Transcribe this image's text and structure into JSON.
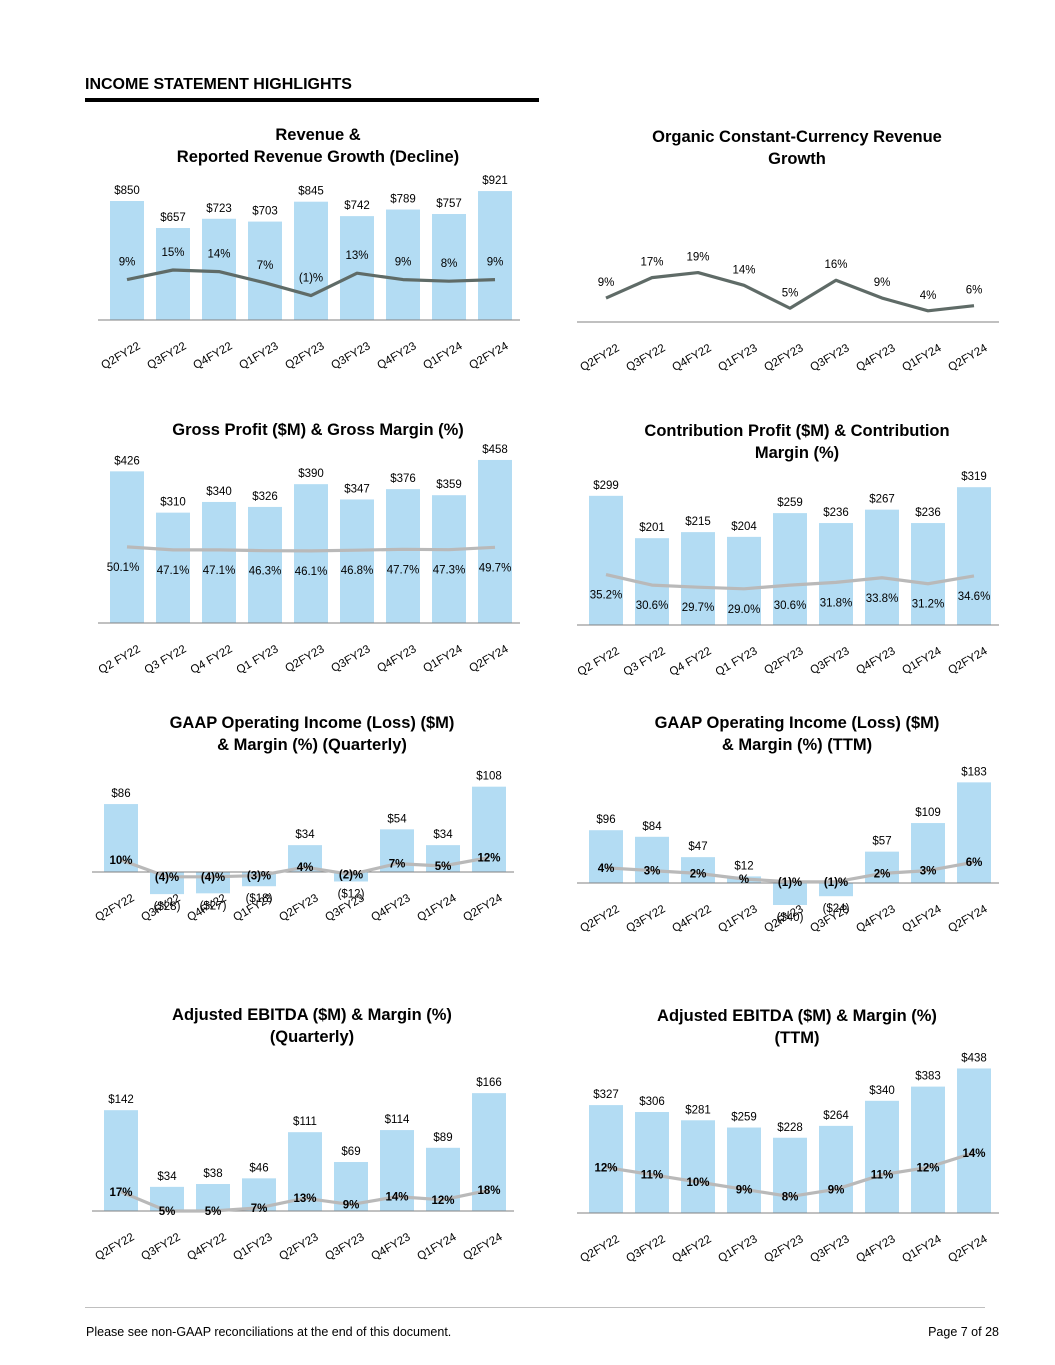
{
  "page": {
    "header": "INCOME STATEMENT HIGHLIGHTS",
    "footer_note": "Please see non-GAAP reconciliations at the end of this document.",
    "page_number": "Page 7 of 28"
  },
  "colors": {
    "bar": "#b3dcf3",
    "line_dark": "#5f6b67",
    "line_light": "#b9b9b9",
    "axis": "#888888"
  },
  "chart_data": [
    {
      "id": "revenue",
      "type": "bar",
      "title": "Revenue &\nReported Revenue Growth (Decline)",
      "categories": [
        "Q2FY22",
        "Q3FY22",
        "Q4FY22",
        "Q1FY23",
        "Q2FY23",
        "Q3FY23",
        "Q4FY23",
        "Q1FY24",
        "Q2FY24"
      ],
      "values": [
        850,
        657,
        723,
        703,
        845,
        742,
        789,
        757,
        921
      ],
      "value_labels": [
        "$850",
        "$657",
        "$723",
        "$703",
        "$845",
        "$742",
        "$789",
        "$757",
        "$921"
      ],
      "line": {
        "name": "Reported Revenue Growth (Decline)",
        "values": [
          9,
          15,
          14,
          7,
          -1,
          13,
          9,
          8,
          9
        ],
        "labels": [
          "9%",
          "15%",
          "14%",
          "7%",
          "(1)%",
          "13%",
          "9%",
          "8%",
          "9%"
        ],
        "color": "dark"
      }
    },
    {
      "id": "organic",
      "type": "line",
      "title": "Organic Constant-Currency Revenue\nGrowth",
      "categories": [
        "Q2FY22",
        "Q3FY22",
        "Q4FY22",
        "Q1FY23",
        "Q2FY23",
        "Q3FY23",
        "Q4FY23",
        "Q1FY24",
        "Q2FY24"
      ],
      "line": {
        "name": "Organic Constant-Currency Revenue Growth",
        "values": [
          9,
          17,
          19,
          14,
          5,
          16,
          9,
          4,
          6
        ],
        "labels": [
          "9%",
          "17%",
          "19%",
          "14%",
          "5%",
          "16%",
          "9%",
          "4%",
          "6%"
        ],
        "color": "dark"
      }
    },
    {
      "id": "gross",
      "type": "bar",
      "title": "Gross Profit ($M) & Gross Margin (%)",
      "categories": [
        "Q2 FY22",
        "Q3 FY22",
        "Q4 FY22",
        "Q1 FY23",
        "Q2FY23",
        "Q3FY23",
        "Q4FY23",
        "Q1FY24",
        "Q2FY24"
      ],
      "values": [
        426,
        310,
        340,
        326,
        390,
        347,
        376,
        359,
        458
      ],
      "value_labels": [
        "$426",
        "$310",
        "$340",
        "$326",
        "$390",
        "$347",
        "$376",
        "$359",
        "$458"
      ],
      "line": {
        "name": "Gross Margin (%)",
        "values": [
          50.1,
          47.1,
          47.1,
          46.3,
          46.1,
          46.8,
          47.7,
          47.3,
          49.7
        ],
        "labels": [
          "50.1%",
          "47.1%",
          "47.1%",
          "46.3%",
          "46.1%",
          "46.8%",
          "47.7%",
          "47.3%",
          "49.7%"
        ],
        "color": "light"
      }
    },
    {
      "id": "contribution",
      "type": "bar",
      "title": "Contribution Profit ($M) & Contribution\nMargin (%)",
      "categories": [
        "Q2 FY22",
        "Q3 FY22",
        "Q4 FY22",
        "Q1 FY23",
        "Q2FY23",
        "Q3FY23",
        "Q4FY23",
        "Q1FY24",
        "Q2FY24"
      ],
      "values": [
        299,
        201,
        215,
        204,
        259,
        236,
        267,
        236,
        319
      ],
      "value_labels": [
        "$299",
        "$201",
        "$215",
        "$204",
        "$259",
        "$236",
        "$267",
        "$236",
        "$319"
      ],
      "line": {
        "name": "Contribution Margin (%)",
        "values": [
          35.2,
          30.6,
          29.7,
          29.0,
          30.6,
          31.8,
          33.8,
          31.2,
          34.6
        ],
        "labels": [
          "35.2%",
          "30.6%",
          "29.7%",
          "29.0%",
          "30.6%",
          "31.8%",
          "33.8%",
          "31.2%",
          "34.6%"
        ],
        "color": "light"
      }
    },
    {
      "id": "gaap_q",
      "type": "bar",
      "title": "GAAP Operating Income (Loss) ($M)\n& Margin (%) (Quarterly)",
      "categories": [
        "Q2FY22",
        "Q3FY22",
        "Q4FY22",
        "Q1FY23",
        "Q2FY23",
        "Q3FY23",
        "Q4FY23",
        "Q1FY24",
        "Q2FY24"
      ],
      "values": [
        86,
        -28,
        -27,
        -18,
        34,
        -12,
        54,
        34,
        108
      ],
      "value_labels": [
        "$86",
        "($28)",
        "($27)",
        "($18)",
        "$34",
        "($12)",
        "$54",
        "$34",
        "$108"
      ],
      "line": {
        "name": "Margin (%)",
        "values": [
          10,
          -4,
          -4,
          -3,
          4,
          -2,
          7,
          5,
          12
        ],
        "labels": [
          "10%",
          "(4)%",
          "(4)%",
          "(3)%",
          "4%",
          "(2)%",
          "7%",
          "5%",
          "12%"
        ],
        "color": "light"
      }
    },
    {
      "id": "gaap_ttm",
      "type": "bar",
      "title": "GAAP Operating Income (Loss) ($M)\n& Margin (%) (TTM)",
      "categories": [
        "Q2FY22",
        "Q3FY22",
        "Q4FY22",
        "Q1FY23",
        "Q2FY23",
        "Q3FY23",
        "Q4FY23",
        "Q1FY24",
        "Q2FY24"
      ],
      "values": [
        96,
        84,
        47,
        12,
        -40,
        -24,
        57,
        109,
        183
      ],
      "value_labels": [
        "$96",
        "$84",
        "$47",
        "$12",
        "($40)",
        "($24)",
        "$57",
        "$109",
        "$183"
      ],
      "line": {
        "name": "Margin (%)",
        "values": [
          4,
          3,
          2,
          0,
          -1,
          -1,
          2,
          3,
          6
        ],
        "labels": [
          "4%",
          "3%",
          "2%",
          "%",
          "(1)%",
          "(1)%",
          "2%",
          "3%",
          "6%"
        ],
        "color": "light"
      }
    },
    {
      "id": "ebitda_q",
      "type": "bar",
      "title": "Adjusted EBITDA ($M) & Margin (%)\n(Quarterly)",
      "categories": [
        "Q2FY22",
        "Q3FY22",
        "Q4FY22",
        "Q1FY23",
        "Q2FY23",
        "Q3FY23",
        "Q4FY23",
        "Q1FY24",
        "Q2FY24"
      ],
      "values": [
        142,
        34,
        38,
        46,
        111,
        69,
        114,
        89,
        166
      ],
      "value_labels": [
        "$142",
        "$34",
        "$38",
        "$46",
        "$111",
        "$69",
        "$114",
        "$89",
        "$166"
      ],
      "line": {
        "name": "Margin (%)",
        "values": [
          17,
          5,
          5,
          7,
          13,
          9,
          14,
          12,
          18
        ],
        "labels": [
          "17%",
          "5%",
          "5%",
          "7%",
          "13%",
          "9%",
          "14%",
          "12%",
          "18%"
        ],
        "color": "light"
      }
    },
    {
      "id": "ebitda_ttm",
      "type": "bar",
      "title": "Adjusted EBITDA ($M) & Margin (%)\n(TTM)",
      "categories": [
        "Q2FY22",
        "Q3FY22",
        "Q4FY22",
        "Q1FY23",
        "Q2FY23",
        "Q3FY23",
        "Q4FY23",
        "Q1FY24",
        "Q2FY24"
      ],
      "values": [
        327,
        306,
        281,
        259,
        228,
        264,
        340,
        383,
        438
      ],
      "value_labels": [
        "$327",
        "$306",
        "$281",
        "$259",
        "$228",
        "$264",
        "$340",
        "$383",
        "$438"
      ],
      "line": {
        "name": "Margin (%)",
        "values": [
          12,
          11,
          10,
          9,
          8,
          9,
          11,
          12,
          14
        ],
        "labels": [
          "12%",
          "11%",
          "10%",
          "9%",
          "8%",
          "9%",
          "11%",
          "12%",
          "14%"
        ],
        "color": "light"
      }
    }
  ]
}
